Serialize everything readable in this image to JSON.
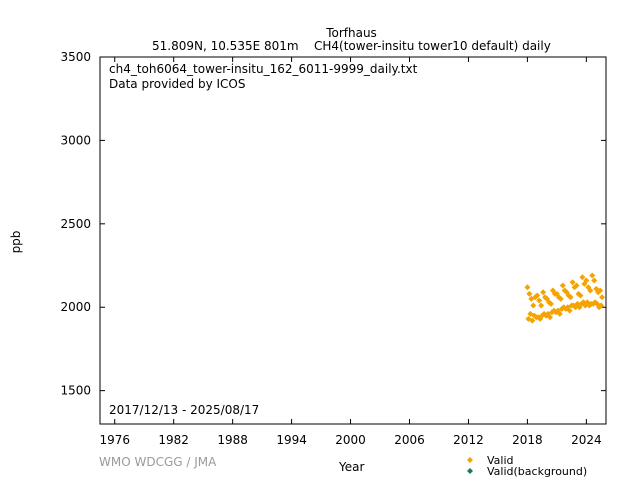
{
  "header": {
    "station": "Torfhaus",
    "location": "51.809N, 10.535E 801m",
    "series_desc": "CH4(tower-insitu tower10 default) daily"
  },
  "credit": "WMO WDCGG / JMA",
  "legend": {
    "valid": "Valid",
    "valid_background": "Valid(background)"
  },
  "colors": {
    "valid": "#f5a300",
    "valid_background": "#1a7a5a"
  },
  "chart_data": {
    "type": "scatter",
    "xlabel": "Year",
    "ylabel": "ppb",
    "xlim": [
      1974.5,
      2026.0
    ],
    "ylim": [
      1300,
      3500
    ],
    "x_ticks": [
      1976,
      1982,
      1988,
      1994,
      2000,
      2006,
      2012,
      2018,
      2024
    ],
    "y_ticks": [
      1500,
      2000,
      2500,
      3000,
      3500
    ],
    "annotations": [
      "ch4_toh6064_tower-insitu_162_6011-9999_daily.txt",
      "Data provided by ICOS",
      "2017/12/13 - 2025/08/17"
    ],
    "series": [
      {
        "name": "Valid",
        "x": [
          2018.0,
          2018.1,
          2018.2,
          2018.3,
          2018.4,
          2018.5,
          2018.6,
          2018.7,
          2018.8,
          2018.9,
          2019.0,
          2019.1,
          2019.2,
          2019.3,
          2019.4,
          2019.5,
          2019.6,
          2019.7,
          2019.8,
          2019.9,
          2020.0,
          2020.1,
          2020.2,
          2020.3,
          2020.4,
          2020.5,
          2020.6,
          2020.7,
          2020.8,
          2020.9,
          2021.0,
          2021.1,
          2021.2,
          2021.3,
          2021.4,
          2021.5,
          2021.6,
          2021.7,
          2021.8,
          2021.9,
          2022.0,
          2022.1,
          2022.2,
          2022.3,
          2022.4,
          2022.5,
          2022.6,
          2022.7,
          2022.8,
          2022.9,
          2023.0,
          2023.1,
          2023.2,
          2023.3,
          2023.4,
          2023.5,
          2023.6,
          2023.7,
          2023.8,
          2023.9,
          2024.0,
          2024.1,
          2024.2,
          2024.3,
          2024.4,
          2024.5,
          2024.6,
          2024.7,
          2024.8,
          2024.9,
          2025.0,
          2025.1,
          2025.2,
          2025.3,
          2025.4,
          2025.5,
          2025.6
        ],
        "y": [
          2120,
          1930,
          2080,
          1960,
          2050,
          1920,
          2010,
          1950,
          2060,
          1940,
          2070,
          1940,
          2040,
          1930,
          2010,
          1950,
          2090,
          1960,
          2060,
          1950,
          2050,
          1960,
          2030,
          1940,
          2020,
          1970,
          2100,
          1980,
          2080,
          1970,
          2080,
          1980,
          2060,
          1960,
          2050,
          1990,
          2130,
          2000,
          2100,
          1990,
          2090,
          2000,
          2070,
          1980,
          2060,
          2010,
          2150,
          2010,
          2120,
          2000,
          2130,
          2020,
          2080,
          2000,
          2070,
          2020,
          2180,
          2030,
          2140,
          2010,
          2160,
          2030,
          2120,
          2010,
          2100,
          2020,
          2190,
          2020,
          2160,
          2030,
          2110,
          2020,
          2090,
          2000,
          2100,
          2010,
          2060
        ]
      },
      {
        "name": "Valid(background)",
        "x": [],
        "y": []
      }
    ]
  }
}
